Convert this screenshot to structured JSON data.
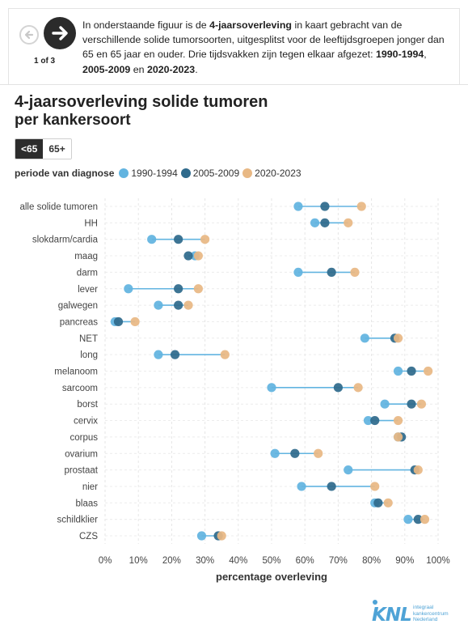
{
  "intro": {
    "part1": "In onderstaande figuur is de ",
    "bold1": "4-jaarsoverleving",
    "part2": " in kaart gebracht van de verschillende solide tumorsoorten, uitgesplitst voor de leeftijdsgroepen jonger dan 65 en 65 jaar en ouder. Drie tijdsvakken zijn tegen elkaar afgezet: ",
    "bold2": "1990-1994",
    "sep1": ", ",
    "bold3": "2005-2009",
    "sep2": " en ",
    "bold4": "2020-2023",
    "end": "."
  },
  "nav": {
    "pager": "1 of 3",
    "prev_icon": "arrow-left-icon",
    "next_icon": "arrow-right-icon"
  },
  "title": "4-jaarsoverleving solide tumoren",
  "subtitle": "per kankersoort",
  "tabs": [
    {
      "label": "<65",
      "active": true
    },
    {
      "label": "65+",
      "active": false
    }
  ],
  "legend": {
    "title": "periode van diagnose",
    "items": [
      {
        "label": "1990-1994",
        "color": "#62b4e0"
      },
      {
        "label": "2005-2009",
        "color": "#2f6a8c"
      },
      {
        "label": "2020-2023",
        "color": "#e8b884"
      }
    ]
  },
  "chart_data": {
    "type": "dumbbell",
    "xlabel": "percentage overleving",
    "xlim": [
      0,
      100
    ],
    "xticks": [
      "0%",
      "10%",
      "20%",
      "30%",
      "40%",
      "50%",
      "60%",
      "70%",
      "80%",
      "90%",
      "100%"
    ],
    "grid": true,
    "categories": [
      "alle solide tumoren",
      "HH",
      "slokdarm/cardia",
      "maag",
      "darm",
      "lever",
      "galwegen",
      "pancreas",
      "NET",
      "long",
      "melanoom",
      "sarcoom",
      "borst",
      "cervix",
      "corpus",
      "ovarium",
      "prostaat",
      "nier",
      "blaas",
      "schildklier",
      "CZS"
    ],
    "series": [
      {
        "name": "1990-1994",
        "color": "#62b4e0",
        "values": [
          58,
          63,
          14,
          27,
          58,
          7,
          16,
          3,
          78,
          16,
          88,
          50,
          84,
          79,
          88,
          51,
          73,
          59,
          81,
          91,
          29
        ]
      },
      {
        "name": "2005-2009",
        "color": "#2f6a8c",
        "values": [
          66,
          66,
          22,
          25,
          68,
          22,
          22,
          4,
          87,
          21,
          92,
          70,
          92,
          81,
          89,
          57,
          93,
          68,
          82,
          94,
          34
        ]
      },
      {
        "name": "2020-2023",
        "color": "#e8b884",
        "values": [
          77,
          73,
          30,
          28,
          75,
          28,
          25,
          9,
          88,
          36,
          97,
          76,
          95,
          88,
          88,
          64,
          94,
          81,
          85,
          96,
          35
        ]
      }
    ],
    "connector_color": "#62b4e0"
  },
  "logo": {
    "mark": "iKNL",
    "line1": "integraal",
    "line2": "kankercentrum",
    "line3": "Nederland"
  }
}
